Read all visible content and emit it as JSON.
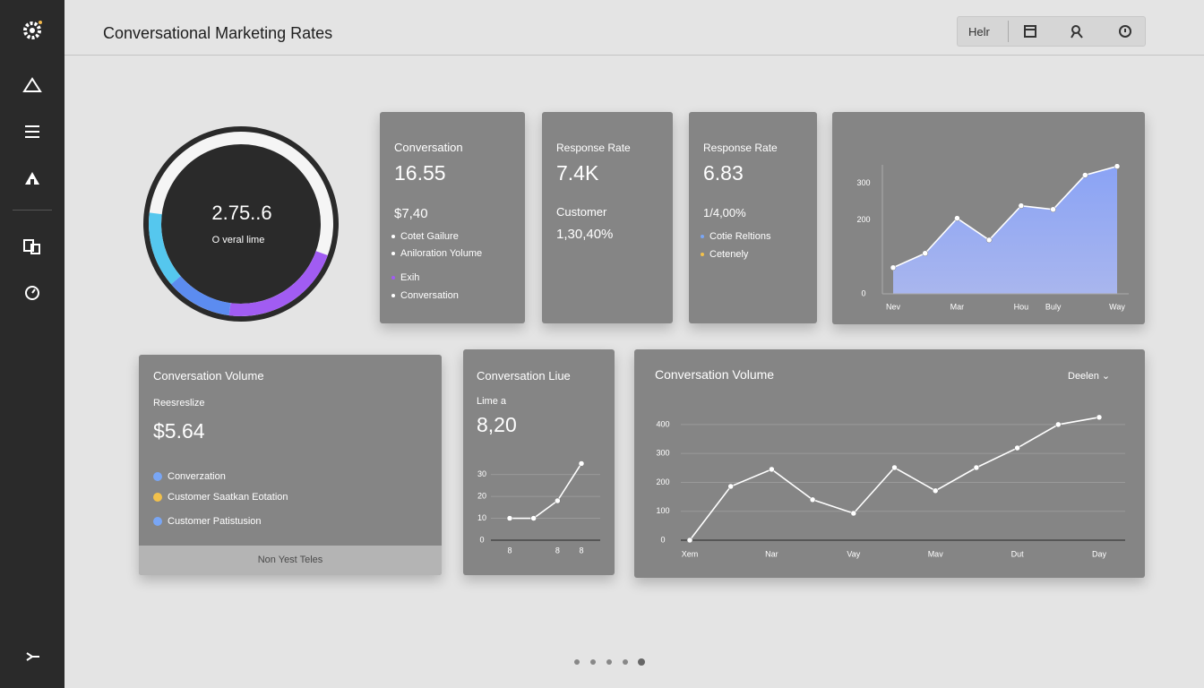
{
  "header": {
    "title": "Conversational Marketing Rates",
    "help": "Helr"
  },
  "gauge": {
    "value": "2.75..6",
    "label": "O veral lime"
  },
  "cards": [
    {
      "title": "Conversation",
      "value": "16.55",
      "sub": "$7,40",
      "items": [
        "Cotet Gailure",
        "Aniloration Yolume",
        "Exih",
        "Conversation"
      ]
    },
    {
      "title": "Response Rate",
      "value": "7.4K",
      "sub": "Customer",
      "sub_value": "1,30,40%"
    },
    {
      "title": "Response Rate",
      "value": "6.83",
      "sub": "1/4,00%",
      "items": [
        "Cotie Reltions",
        "Cetenely"
      ]
    }
  ],
  "volume_card": {
    "title": "Conversation Volume",
    "sub": "Reesreslize",
    "value": "$5.64",
    "legend": [
      "Converzation",
      "Customer Saatkan Eotation",
      "Customer Patistusion"
    ],
    "button": "Non Yest Teles"
  },
  "line_card": {
    "title": "Conversation Liue",
    "sub": "Lime a",
    "value": "8,20"
  },
  "big_card": {
    "title": "Conversation Volume",
    "dropdown": "Deelen"
  },
  "chart_data": [
    {
      "type": "area",
      "color": "#8ea6f2",
      "categories": [
        "Nev",
        null,
        "Mar",
        null,
        "Hou",
        "Buly",
        null,
        "Way"
      ],
      "values": [
        71,
        110,
        205,
        146,
        239,
        229,
        322,
        346
      ],
      "ylim": [
        0,
        350
      ],
      "yticks": [
        0,
        200,
        300
      ],
      "grid": false
    },
    {
      "type": "line",
      "color": "#ffffff",
      "categories": [
        "8",
        null,
        "8",
        "8"
      ],
      "values": [
        10,
        10,
        18,
        35
      ],
      "ylim": [
        0,
        36
      ],
      "yticks": [
        0,
        10,
        20,
        30
      ],
      "grid": true
    },
    {
      "type": "line",
      "color": "#ffffff",
      "categories": [
        "Xem",
        null,
        "Nar",
        null,
        "Vay",
        null,
        "Mav",
        null,
        "Dut",
        null,
        "Day"
      ],
      "values": [
        0,
        186,
        245,
        140,
        93,
        251,
        171,
        251,
        319,
        400,
        425
      ],
      "ylim": [
        0,
        440
      ],
      "yticks": [
        0,
        100,
        200,
        300,
        400
      ],
      "grid": true
    }
  ]
}
